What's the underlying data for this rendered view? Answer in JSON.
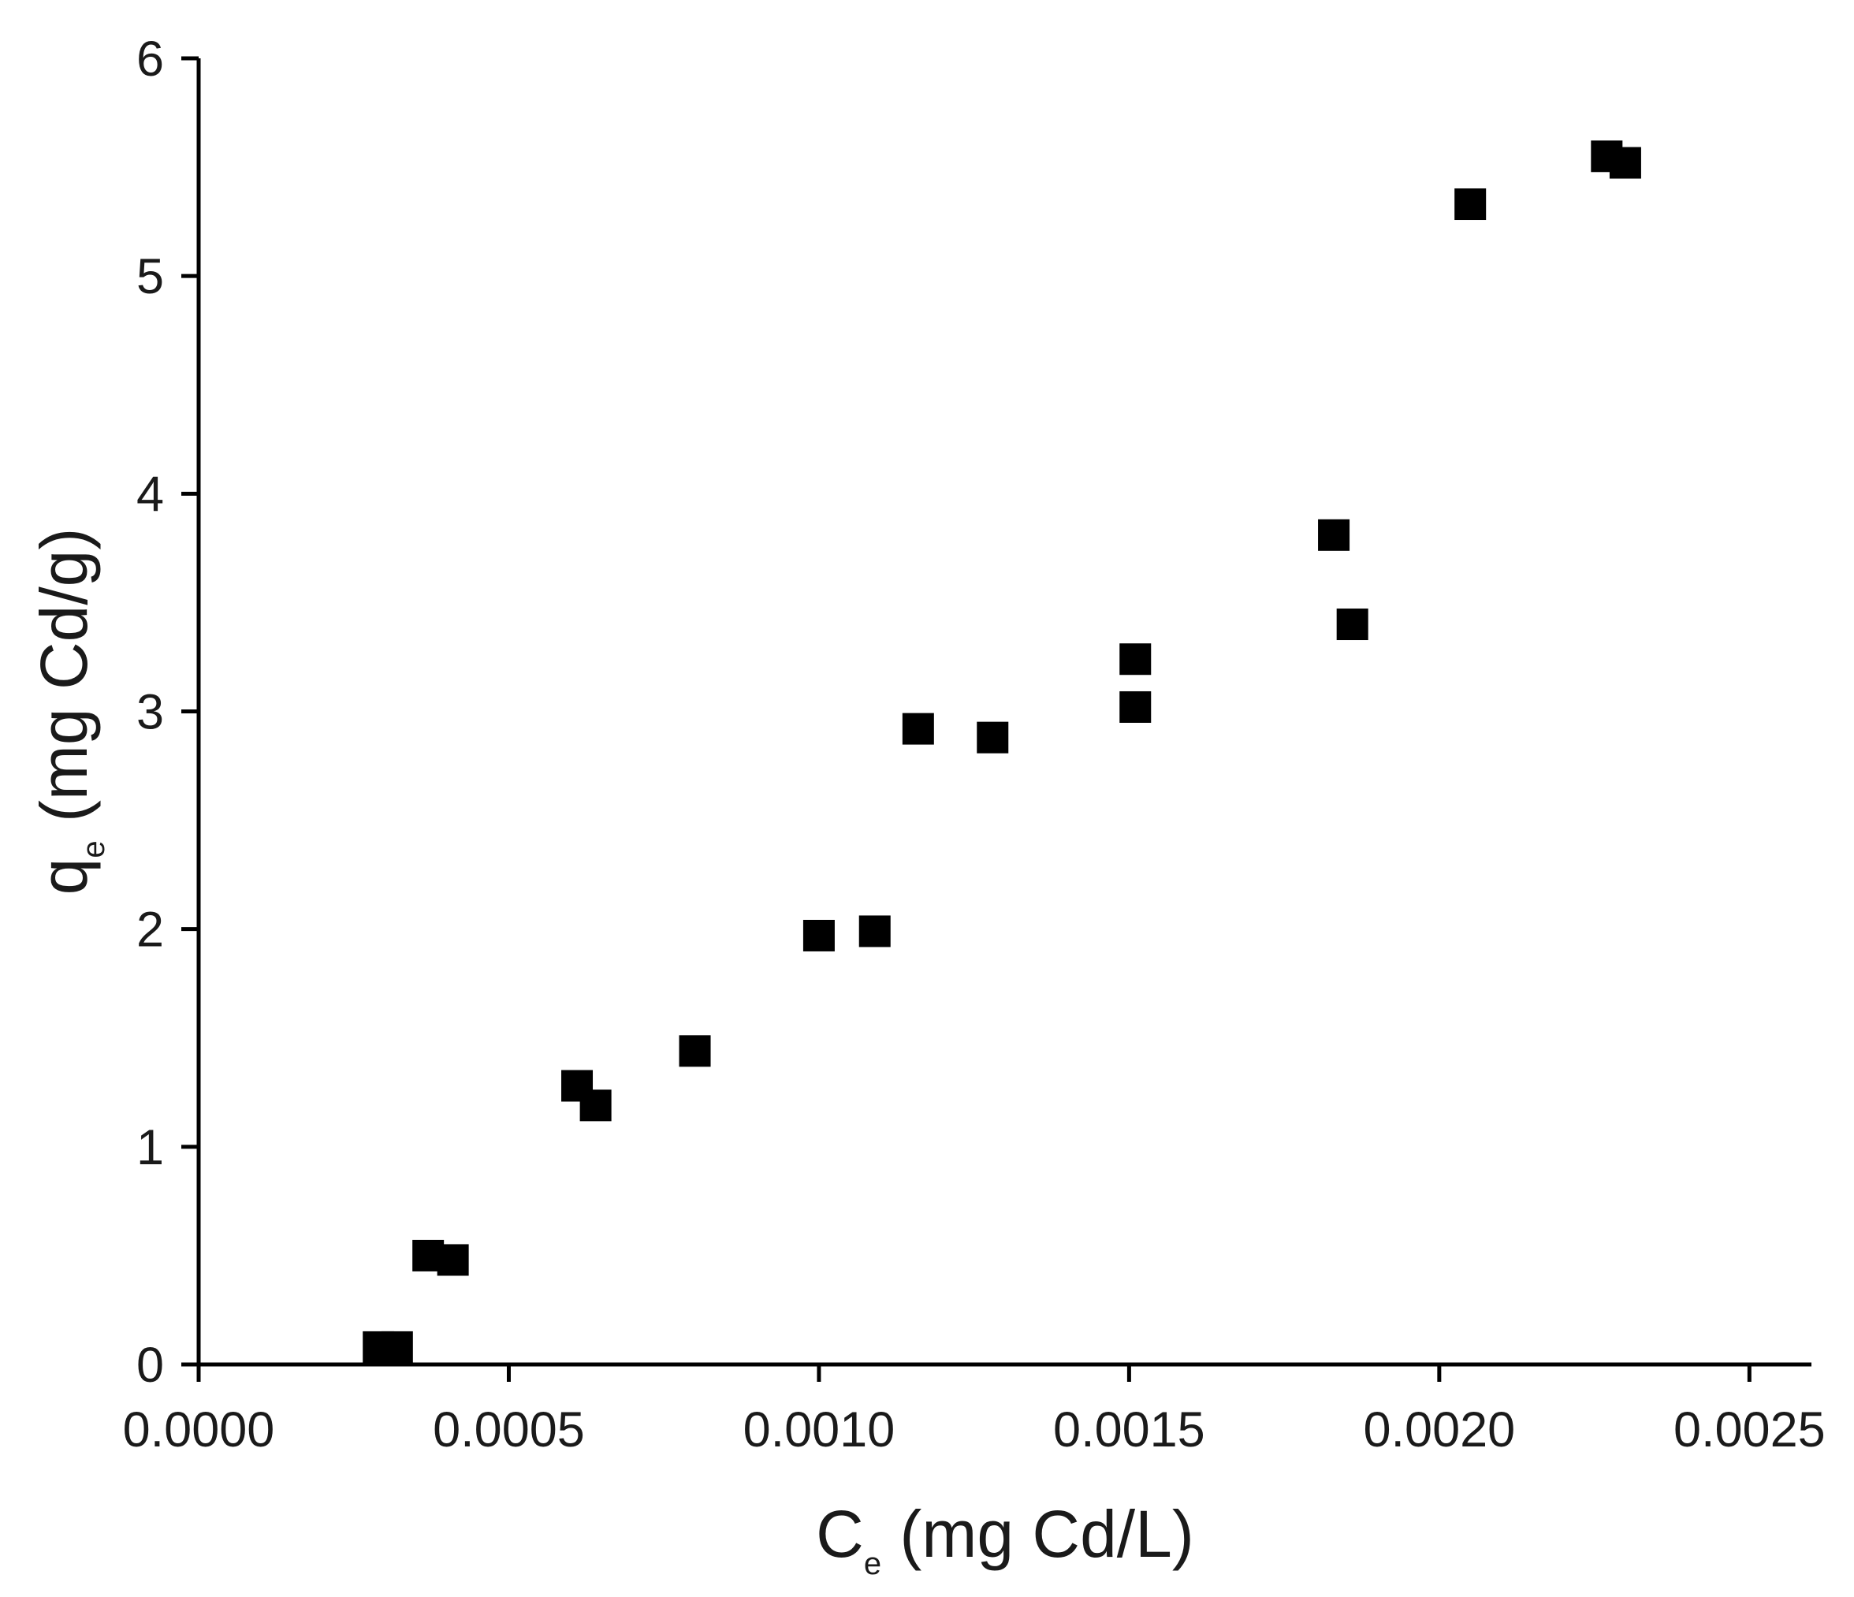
{
  "chart_data": {
    "type": "scatter",
    "xlabel": {
      "main": "C",
      "sub": "e",
      "unit": " (mg Cd/L)"
    },
    "ylabel": {
      "main": "q",
      "sub": "e",
      "unit": " (mg Cd/g)"
    },
    "xlim": [
      0,
      0.0026
    ],
    "ylim": [
      0,
      6
    ],
    "xticks": [
      0,
      0.0005,
      0.001,
      0.0015,
      0.002,
      0.0025
    ],
    "xtick_labels": [
      "0.0000",
      "0.0005",
      "0.0010",
      "0.0015",
      "0.0020",
      "0.0025"
    ],
    "yticks": [
      0,
      1,
      2,
      3,
      4,
      5,
      6
    ],
    "ytick_labels": [
      "0",
      "1",
      "2",
      "3",
      "4",
      "5",
      "6"
    ],
    "grid": false,
    "marker": {
      "shape": "square",
      "color": "#000000"
    },
    "series": [
      {
        "points": [
          {
            "x": 0.00029,
            "y": 0.08
          },
          {
            "x": 0.00032,
            "y": 0.08
          },
          {
            "x": 0.00037,
            "y": 0.5
          },
          {
            "x": 0.00041,
            "y": 0.48
          },
          {
            "x": 0.00061,
            "y": 1.28
          },
          {
            "x": 0.00064,
            "y": 1.19
          },
          {
            "x": 0.0008,
            "y": 1.44
          },
          {
            "x": 0.001,
            "y": 1.97
          },
          {
            "x": 0.00109,
            "y": 1.99
          },
          {
            "x": 0.00116,
            "y": 2.92
          },
          {
            "x": 0.00128,
            "y": 2.88
          },
          {
            "x": 0.00151,
            "y": 3.24
          },
          {
            "x": 0.00151,
            "y": 3.02
          },
          {
            "x": 0.00183,
            "y": 3.81
          },
          {
            "x": 0.00186,
            "y": 3.4
          },
          {
            "x": 0.00205,
            "y": 5.33
          },
          {
            "x": 0.00227,
            "y": 5.55
          },
          {
            "x": 0.0023,
            "y": 5.52
          }
        ]
      }
    ]
  }
}
